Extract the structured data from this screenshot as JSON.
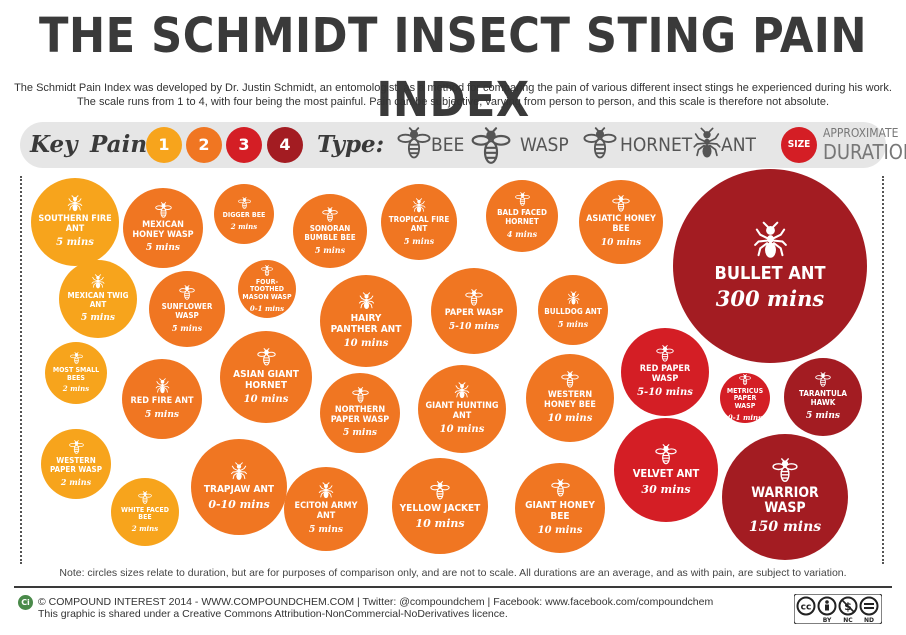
{
  "title": "THE SCHMIDT INSECT STING PAIN INDEX",
  "intro": "The Schmidt Pain Index was developed by Dr. Justin Schmidt, an entomologist, as a method for comparing the pain of various different insect stings he experienced during his work. The scale runs from 1 to 4, with four being the most painful. Pain can be subjective, varying from person to person, and this scale is therefore not absolute.",
  "key": {
    "key_label": "Key",
    "pain_label": "Pain:",
    "pain_levels": [
      "1",
      "2",
      "3",
      "4"
    ],
    "pain_colors": [
      "#f7a41c",
      "#f07622",
      "#d41e25",
      "#a31c22"
    ],
    "type_label": "Type:",
    "types": [
      {
        "icon": "bee-icon",
        "label": "BEE"
      },
      {
        "icon": "wasp-icon",
        "label": "WASP"
      },
      {
        "icon": "hornet-icon",
        "label": "HORNET"
      },
      {
        "icon": "ant-icon",
        "label": "ANT"
      }
    ],
    "size_label": "SIZE",
    "size_note_1": "APPROXIMATE",
    "size_note_2": "DURATION"
  },
  "insects": [
    {
      "name": "Southern Fire Ant",
      "duration": "5 mins",
      "pain": 1,
      "type": "ant"
    },
    {
      "name": "Mexican Honey Wasp",
      "duration": "5 mins",
      "pain": 2,
      "type": "wasp"
    },
    {
      "name": "Digger Bee",
      "duration": "2 mins",
      "pain": 2,
      "type": "bee"
    },
    {
      "name": "Sonoran Bumble Bee",
      "duration": "5 mins",
      "pain": 2,
      "type": "bee"
    },
    {
      "name": "Tropical Fire Ant",
      "duration": "5 mins",
      "pain": 2,
      "type": "ant"
    },
    {
      "name": "Bald Faced Hornet",
      "duration": "4 mins",
      "pain": 2,
      "type": "hornet"
    },
    {
      "name": "Asiatic Honey Bee",
      "duration": "10 mins",
      "pain": 2,
      "type": "bee"
    },
    {
      "name": "Bullet Ant",
      "duration": "300 mins",
      "pain": 4,
      "type": "ant"
    },
    {
      "name": "Mexican Twig Ant",
      "duration": "5 mins",
      "pain": 1,
      "type": "ant"
    },
    {
      "name": "Sunflower Wasp",
      "duration": "5 mins",
      "pain": 2,
      "type": "wasp"
    },
    {
      "name": "Four-Toothed Mason Wasp",
      "duration": "0-1 mins",
      "pain": 2,
      "type": "wasp"
    },
    {
      "name": "Hairy Panther Ant",
      "duration": "10 mins",
      "pain": 2,
      "type": "ant"
    },
    {
      "name": "Paper Wasp",
      "duration": "5-10 mins",
      "pain": 2,
      "type": "wasp"
    },
    {
      "name": "Bulldog Ant",
      "duration": "5 mins",
      "pain": 2,
      "type": "ant"
    },
    {
      "name": "Most Small Bees",
      "duration": "2 mins",
      "pain": 1,
      "type": "bee"
    },
    {
      "name": "Red Fire Ant",
      "duration": "5 mins",
      "pain": 2,
      "type": "ant"
    },
    {
      "name": "Asian Giant Hornet",
      "duration": "10 mins",
      "pain": 2,
      "type": "hornet"
    },
    {
      "name": "Northern Paper Wasp",
      "duration": "5 mins",
      "pain": 2,
      "type": "wasp"
    },
    {
      "name": "Giant Hunting Ant",
      "duration": "10 mins",
      "pain": 2,
      "type": "ant"
    },
    {
      "name": "Western Honey Bee",
      "duration": "10 mins",
      "pain": 2,
      "type": "bee"
    },
    {
      "name": "Red Paper Wasp",
      "duration": "5-10 mins",
      "pain": 3,
      "type": "wasp"
    },
    {
      "name": "Metricus Paper Wasp",
      "duration": "0-1 mins",
      "pain": 3,
      "type": "wasp"
    },
    {
      "name": "Tarantula Hawk",
      "duration": "5 mins",
      "pain": 4,
      "type": "wasp"
    },
    {
      "name": "Western Paper Wasp",
      "duration": "2 mins",
      "pain": 1,
      "type": "wasp"
    },
    {
      "name": "White Faced Bee",
      "duration": "2 mins",
      "pain": 1,
      "type": "bee"
    },
    {
      "name": "Trapjaw Ant",
      "duration": "0-10 mins",
      "pain": 2,
      "type": "ant"
    },
    {
      "name": "Eciton Army Ant",
      "duration": "5 mins",
      "pain": 2,
      "type": "ant"
    },
    {
      "name": "Yellow Jacket",
      "duration": "10 mins",
      "pain": 2,
      "type": "wasp"
    },
    {
      "name": "Giant Honey Bee",
      "duration": "10 mins",
      "pain": 2,
      "type": "bee"
    },
    {
      "name": "Velvet Ant",
      "duration": "30 mins",
      "pain": 3,
      "type": "wasp"
    },
    {
      "name": "Warrior Wasp",
      "duration": "150 mins",
      "pain": 4,
      "type": "wasp"
    }
  ],
  "note": "Note: circles sizes relate to duration, but are for purposes of comparison only, and are not to scale. All durations are an average, and as with pain, are subject to variation.",
  "footer": {
    "logo": "Ci",
    "credit": "© COMPOUND INTEREST 2014 - WWW.COMPOUNDCHEM.COM | Twitter: @compoundchem | Facebook: www.facebook.com/compoundchem",
    "license": "This graphic is shared under a Creative Commons Attribution-NonCommercial-NoDerivatives licence.",
    "cc_labels": [
      "BY",
      "NC",
      "ND"
    ]
  }
}
